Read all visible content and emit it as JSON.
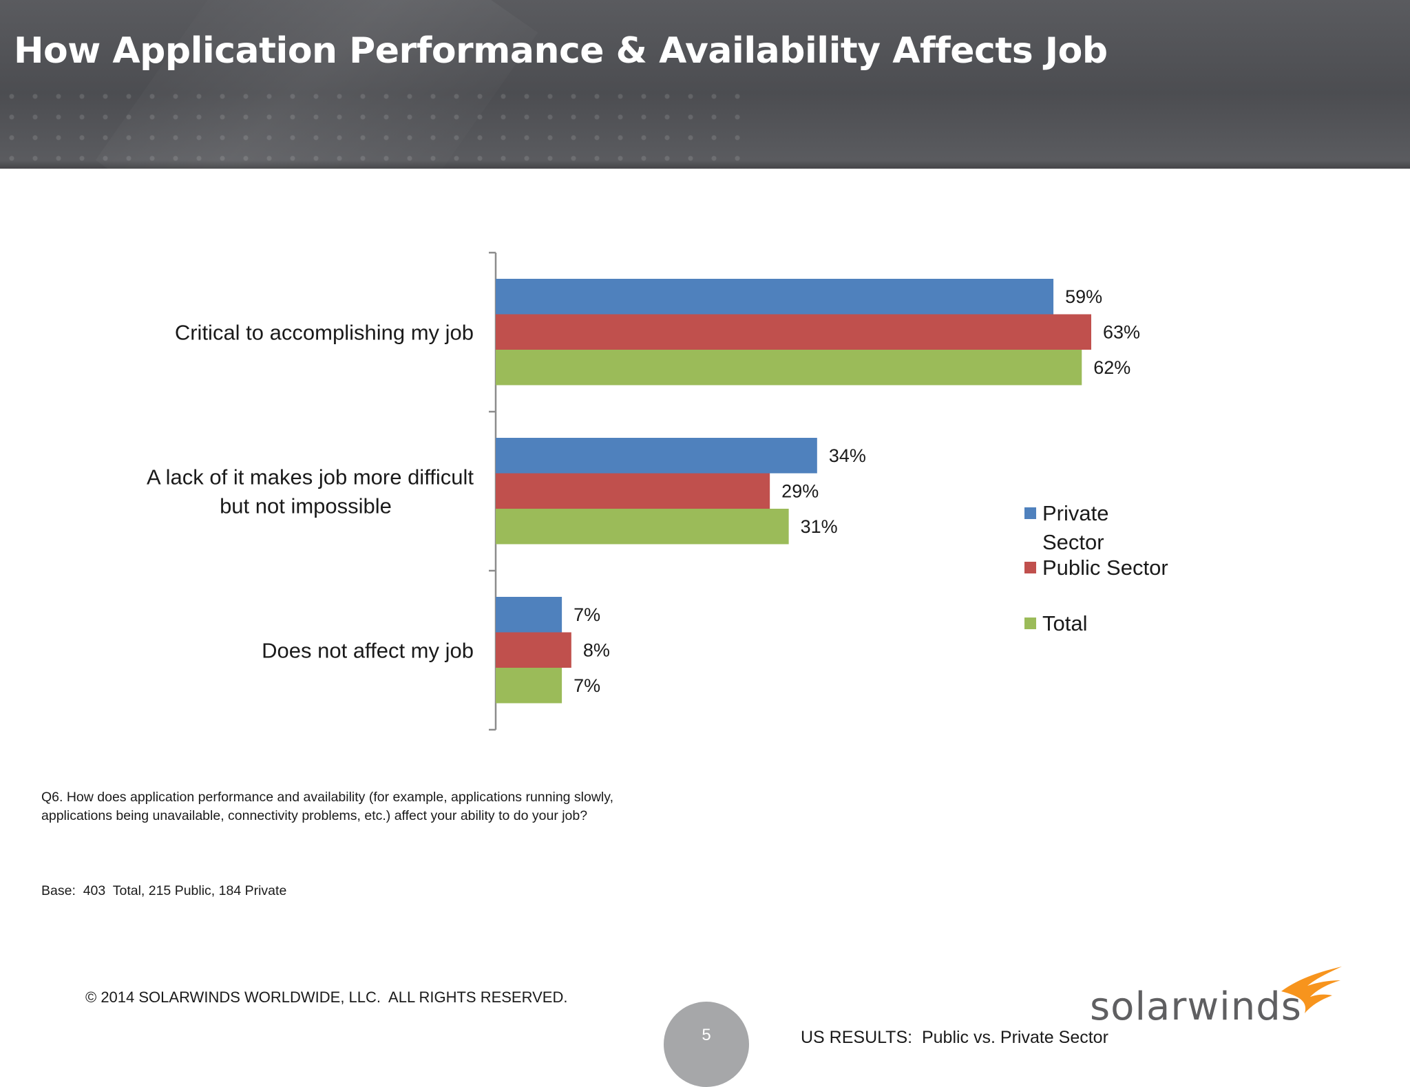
{
  "slide": {
    "title": "How Application Performance & Availability Affects Job",
    "question": "Q6. How does application performance and availability (for example, applications running slowly, applications being unavailable, connectivity problems, etc.) affect your ability to do your job?",
    "base": "Base:  403  Total, 215 Public, 184 Private",
    "copyright": "© 2014 SOLARWINDS WORLDWIDE, LLC.  ALL RIGHTS RESERVED.",
    "page_number": "5",
    "footer_note": "US RESULTS:  Public vs. Private Sector",
    "logo_text": "solarwinds"
  },
  "chart_data": {
    "type": "bar",
    "orientation": "horizontal",
    "categories": [
      [
        "Critical to accomplishing my job"
      ],
      [
        "A lack of it makes job more difficult",
        "but not impossible"
      ],
      [
        "Does not affect my job"
      ]
    ],
    "series": [
      {
        "name": [
          "Private",
          "Sector"
        ],
        "color": "#4f81bd",
        "values": [
          59,
          34,
          7
        ],
        "labels": [
          "59%",
          "34%",
          "7%"
        ]
      },
      {
        "name": [
          "Public Sector"
        ],
        "color": "#c0504d",
        "values": [
          63,
          29,
          8
        ],
        "labels": [
          "63%",
          "29%",
          "8%"
        ]
      },
      {
        "name": [
          "Total"
        ],
        "color": "#9bbb59",
        "values": [
          62,
          31,
          7
        ],
        "labels": [
          "62%",
          "31%",
          "7%"
        ]
      }
    ],
    "unit": "%",
    "xlim": [
      0,
      63
    ],
    "grid": false,
    "legend": "right"
  }
}
